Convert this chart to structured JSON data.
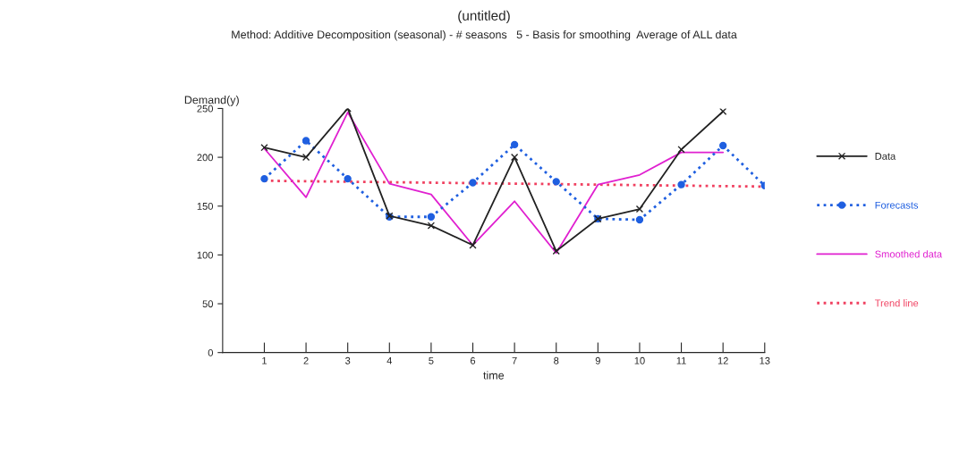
{
  "chart_data": {
    "type": "line",
    "title": "(untitled)",
    "subtitle": "Method: Additive Decomposition (seasonal) - # seasons   5 - Basis for smoothing  Average of ALL data",
    "xlabel": "time",
    "ylabel": "Demand(y)",
    "x": [
      1,
      2,
      3,
      4,
      5,
      6,
      7,
      8,
      9,
      10,
      11,
      12,
      13
    ],
    "series": [
      {
        "name": "Data",
        "color": "#222222",
        "marker": "cross",
        "line_style": "solid",
        "x": [
          1,
          2,
          3,
          4,
          5,
          6,
          7,
          8,
          9,
          10,
          11,
          12
        ],
        "values": [
          210,
          200,
          250,
          140,
          130,
          110,
          200,
          104,
          137,
          147,
          208,
          247
        ]
      },
      {
        "name": "Forecasts",
        "color": "#1f5fe0",
        "marker": "circle",
        "line_style": "dotted",
        "values": [
          178,
          217,
          178,
          139,
          139,
          174,
          213,
          175,
          137,
          136,
          172,
          212,
          171
        ]
      },
      {
        "name": "Smoothed data",
        "color": "#e020d0",
        "marker": "none",
        "line_style": "solid",
        "x": [
          1,
          2,
          3,
          4,
          5,
          6,
          7,
          8,
          9,
          10,
          11,
          12
        ],
        "values": [
          209,
          159,
          246,
          173,
          162,
          110,
          155,
          102,
          172,
          182,
          205,
          205
        ]
      },
      {
        "name": "Trend line",
        "color": "#f04060",
        "marker": "none",
        "line_style": "dotted",
        "x": [
          1,
          13
        ],
        "values": [
          176,
          170
        ]
      }
    ],
    "xlim": [
      0,
      13
    ],
    "xticks": [
      1,
      2,
      3,
      4,
      5,
      6,
      7,
      8,
      9,
      10,
      11,
      12,
      13
    ],
    "ylim": [
      0,
      250
    ],
    "yticks": [
      0,
      50,
      100,
      150,
      200,
      250
    ],
    "grid": false,
    "legend": "right"
  }
}
